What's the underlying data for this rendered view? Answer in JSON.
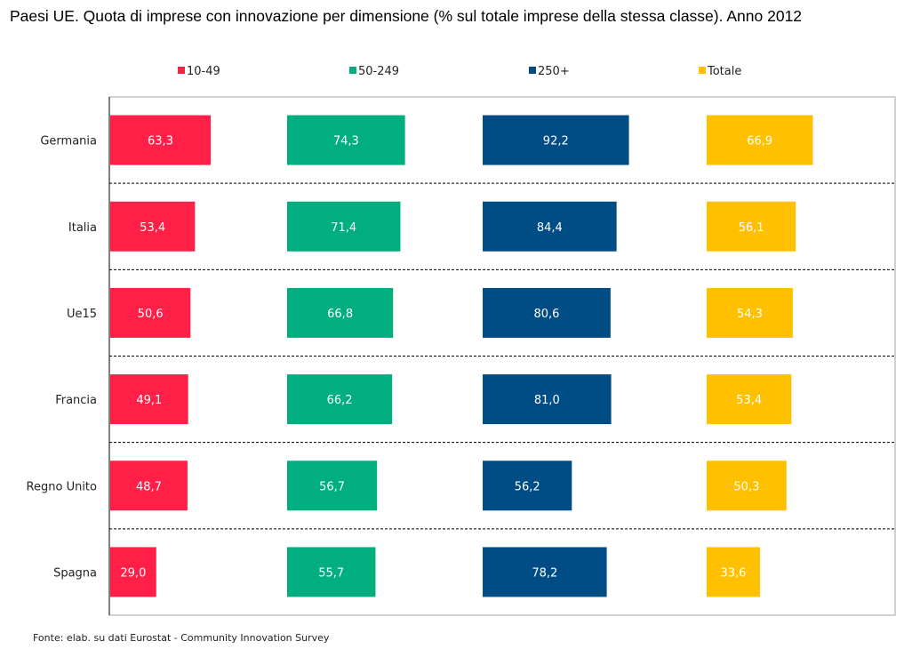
{
  "chart_data": {
    "type": "bar",
    "orientation": "horizontal",
    "layout": "small-multiples",
    "title": "Paesi UE. Quota di imprese con innovazione per dimensione (% sul totale imprese della stessa classe). Anno 2012",
    "categories": [
      "Germania",
      "Italia",
      "Ue15",
      "Francia",
      "Regno Unito",
      "Spagna"
    ],
    "series": [
      {
        "name": "10-49",
        "color": "#ff1f47",
        "values": [
          63.3,
          53.4,
          50.6,
          49.1,
          48.7,
          29.0
        ],
        "labels": [
          "63,3",
          "53,4",
          "50,6",
          "49,1",
          "48,7",
          "29,0"
        ]
      },
      {
        "name": "50-249",
        "color": "#00ae7f",
        "values": [
          74.3,
          71.4,
          66.8,
          66.2,
          56.7,
          55.7
        ],
        "labels": [
          "74,3",
          "71,4",
          "66,8",
          "66,2",
          "56,7",
          "55,7"
        ]
      },
      {
        "name": "250+",
        "color": "#004d86",
        "values": [
          92.2,
          84.4,
          80.6,
          81.0,
          56.2,
          78.2
        ],
        "labels": [
          "92,2",
          "84,4",
          "80,6",
          "81,0",
          "56,2",
          "78,2"
        ]
      },
      {
        "name": "Totale",
        "color": "#ffc000",
        "values": [
          66.9,
          56.1,
          54.3,
          53.4,
          50.3,
          33.6
        ],
        "labels": [
          "66,9",
          "56,1",
          "54,3",
          "53,4",
          "50,3",
          "33,6"
        ]
      }
    ],
    "legend_position": "top",
    "gridlines": "dashed row separators",
    "source": "Fonte: elab. su dati Eurostat - Community Innovation Survey"
  }
}
